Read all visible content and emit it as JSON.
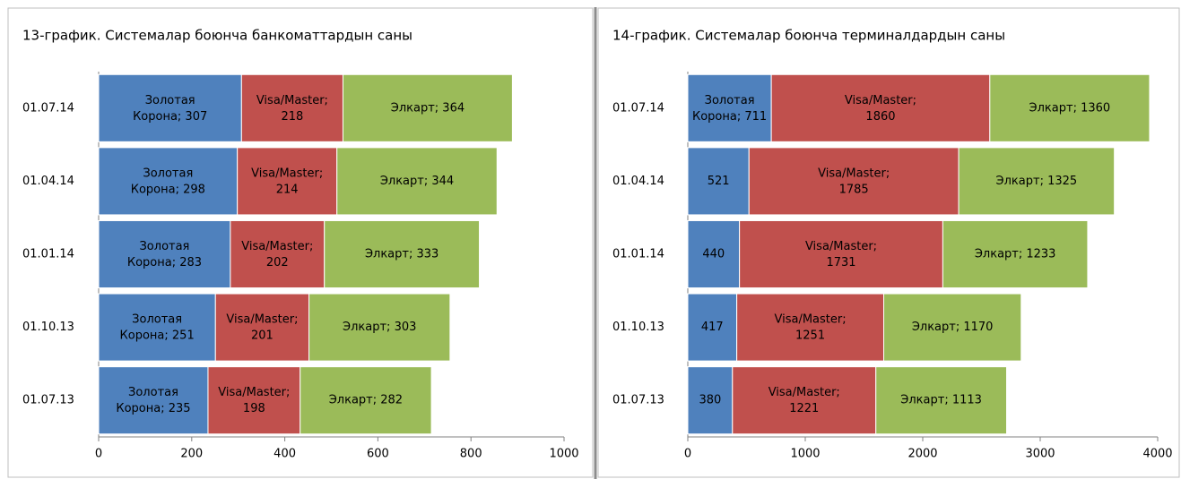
{
  "chart_data": [
    {
      "type": "stacked-bar-horizontal",
      "title": "13-график. Системалар боюнча банкоматтардын саны",
      "categories": [
        "01.07.14",
        "01.04.14",
        "01.01.14",
        "01.10.13",
        "01.07.13"
      ],
      "series": [
        {
          "name": "Золотая Корона",
          "color": "#4f81bd",
          "values": [
            307,
            298,
            283,
            251,
            235
          ],
          "value_labels": [
            "Золотая\nКорона; 307",
            "Золотая\nКорона; 298",
            "Золотая\nКорона; 283",
            "Золотая\nКорона; 251",
            "Золотая\nКорона; 235"
          ]
        },
        {
          "name": "Visa/Master",
          "color": "#c0504d",
          "values": [
            218,
            214,
            202,
            201,
            198
          ],
          "value_labels": [
            "Visa/Master;\n218",
            "Visa/Master;\n214",
            "Visa/Master;\n202",
            "Visa/Master;\n201",
            "Visa/Master;\n198"
          ]
        },
        {
          "name": "Элкарт",
          "color": "#9bbb59",
          "values": [
            364,
            344,
            333,
            303,
            282
          ],
          "value_labels": [
            "Элкарт; 364",
            "Элкарт; 344",
            "Элкарт; 333",
            "Элкарт; 303",
            "Элкарт; 282"
          ]
        }
      ],
      "xlim": [
        0,
        1000
      ],
      "xticks": [
        0,
        200,
        400,
        600,
        800,
        1000
      ]
    },
    {
      "type": "stacked-bar-horizontal",
      "title": "14-график. Системалар боюнча терминалдардын саны",
      "categories": [
        "01.07.14",
        "01.04.14",
        "01.01.14",
        "01.10.13",
        "01.07.13"
      ],
      "series": [
        {
          "name": "Золотая Корона",
          "color": "#4f81bd",
          "values": [
            711,
            521,
            440,
            417,
            380
          ],
          "value_labels": [
            "Золотая\nКорона; 711",
            "521",
            "440",
            "417",
            "380"
          ]
        },
        {
          "name": "Visa/Master",
          "color": "#c0504d",
          "values": [
            1860,
            1785,
            1731,
            1251,
            1221
          ],
          "value_labels": [
            "Visa/Master;\n1860",
            "Visa/Master;\n1785",
            "Visa/Master;\n1731",
            "Visa/Master;\n1251",
            "Visa/Master;\n1221"
          ]
        },
        {
          "name": "Элкарт",
          "color": "#9bbb59",
          "values": [
            1360,
            1325,
            1233,
            1170,
            1113
          ],
          "value_labels": [
            "Элкарт; 1360",
            "Элкарт; 1325",
            "Элкарт; 1233",
            "Элкарт; 1170",
            "Элкарт; 1113"
          ]
        }
      ],
      "xlim": [
        0,
        4000
      ],
      "xticks": [
        0,
        1000,
        2000,
        3000,
        4000
      ]
    }
  ]
}
